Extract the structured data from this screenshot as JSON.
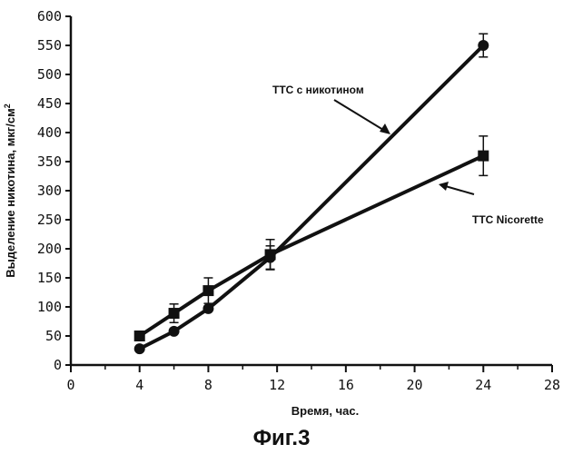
{
  "chart_data": {
    "type": "line",
    "figure_caption": "Фиг.3",
    "xlabel": "Время, час.",
    "ylabel_text": "Выделение никотина, мкг/см",
    "ylabel_superscript": "2",
    "xlim": [
      0,
      28
    ],
    "ylim": [
      0,
      600
    ],
    "xticks": [
      0,
      4,
      8,
      12,
      16,
      20,
      24,
      28
    ],
    "yticks": [
      0,
      50,
      100,
      150,
      200,
      250,
      300,
      350,
      400,
      450,
      500,
      550,
      600
    ],
    "grid": false,
    "series": [
      {
        "name": "ТТС с никотином",
        "marker": "circle",
        "x": [
          4,
          6,
          8,
          11.6,
          24
        ],
        "y": [
          28,
          58,
          97,
          185,
          550
        ],
        "error": [
          0,
          0,
          0,
          20,
          20
        ]
      },
      {
        "name": "ТТС Nicorette",
        "marker": "square",
        "x": [
          4,
          6,
          8,
          11.6,
          24
        ],
        "y": [
          50,
          89,
          128,
          190,
          360
        ],
        "error": [
          0,
          16,
          22,
          26,
          34
        ]
      }
    ],
    "annotations": [
      {
        "text": "ТТС с никотином",
        "series": 0
      },
      {
        "text": "ТТС Nicorette",
        "series": 1
      }
    ]
  }
}
